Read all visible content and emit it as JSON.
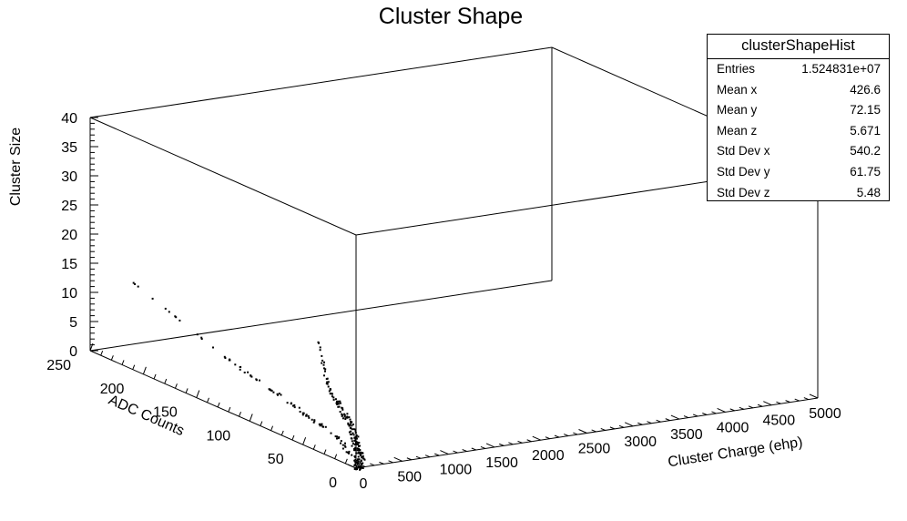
{
  "chart_data": {
    "type": "scatter3d",
    "title": "Cluster Shape",
    "xlabel": "Cluster Charge  (ehp)",
    "ylabel": "ADC Counts",
    "zlabel": "Cluster Size",
    "xlim": [
      0,
      5000
    ],
    "ylim": [
      0,
      250
    ],
    "zlim": [
      0,
      40
    ],
    "x_ticks": [
      "0",
      "500",
      "1000",
      "1500",
      "2000",
      "2500",
      "3000",
      "3500",
      "4000",
      "4500",
      "5000"
    ],
    "y_ticks": [
      "0",
      "50",
      "100",
      "150",
      "200",
      "250"
    ],
    "z_ticks": [
      "0",
      "5",
      "10",
      "15",
      "20",
      "25",
      "30",
      "35",
      "40"
    ],
    "series": [
      {
        "x": [
          0,
          150,
          300,
          450,
          600,
          750,
          900,
          1050,
          1200,
          1400,
          1700,
          2000
        ],
        "y": [
          0,
          10,
          25,
          40,
          55,
          70,
          90,
          110,
          130,
          150,
          180,
          210
        ],
        "z": [
          0,
          0,
          0,
          0,
          0,
          0,
          0,
          0,
          0,
          0,
          0,
          0
        ]
      },
      {
        "x": [
          0,
          0,
          0,
          0,
          0,
          0,
          0,
          0,
          0,
          0
        ],
        "y": [
          5,
          20,
          40,
          60,
          80,
          100,
          120,
          150,
          180,
          210
        ],
        "z": [
          2,
          4,
          5,
          6,
          7,
          8,
          9,
          11,
          13,
          15
        ]
      }
    ]
  },
  "stats_box": {
    "name": "clusterShapeHist",
    "rows": [
      {
        "label": "Entries",
        "value": "1.524831e+07"
      },
      {
        "label": "Mean x",
        "value": "426.6"
      },
      {
        "label": "Mean y",
        "value": "72.15"
      },
      {
        "label": "Mean z",
        "value": "5.671"
      },
      {
        "label": "Std Dev x",
        "value": "540.2"
      },
      {
        "label": "Std Dev y",
        "value": "61.75"
      },
      {
        "label": "Std Dev z",
        "value": "5.48"
      }
    ]
  }
}
